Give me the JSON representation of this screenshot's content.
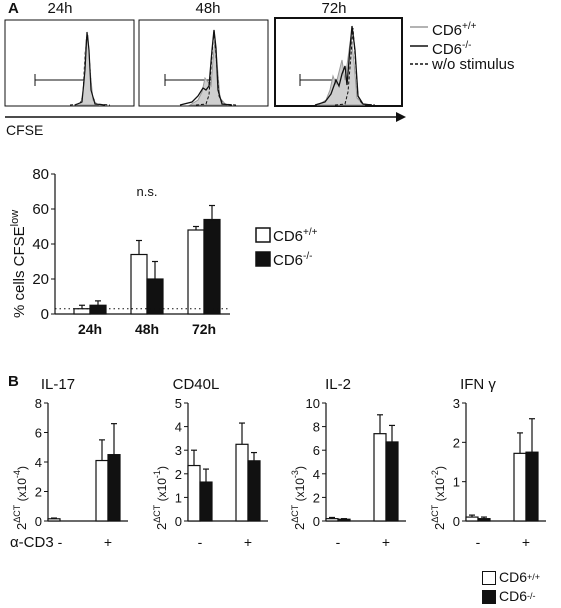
{
  "colors": {
    "ink": "#111111",
    "open_bar": "#ffffff",
    "filled_bar": "#111111",
    "histogram_fill": "#cfcfcf",
    "histogram_wt": "#9a9a9a"
  },
  "panel_a": {
    "letter": "A",
    "timepoints": [
      "24h",
      "48h",
      "72h"
    ],
    "legend": [
      {
        "label": "CD6",
        "sup": "+/+",
        "style": "gray-solid"
      },
      {
        "label": "CD6",
        "sup": "-/-",
        "style": "black-solid"
      },
      {
        "label": "w/o stimulus",
        "sup": "",
        "style": "black-dashed"
      }
    ],
    "axis_label": "CFSE"
  },
  "panel_b": {
    "letter": "B"
  },
  "chart_data": [
    {
      "type": "bar",
      "ylabel": "% cells CFSE",
      "ylabel_sup": "low",
      "categories": [
        "24h",
        "48h",
        "72h"
      ],
      "ylim": [
        0,
        80
      ],
      "yticks": [
        0,
        20,
        40,
        60,
        80
      ],
      "series": [
        {
          "name": "CD6+/+",
          "values": [
            3,
            34,
            48
          ],
          "errors": [
            2,
            8,
            2
          ]
        },
        {
          "name": "CD6-/-",
          "values": [
            5,
            20,
            54
          ],
          "errors": [
            2.5,
            10,
            8
          ]
        }
      ],
      "annotation": "n.s.",
      "annotation_category": "48h",
      "baseline": 3,
      "legend": [
        {
          "label": "CD6",
          "sup": "+/+",
          "fill": "open"
        },
        {
          "label": "CD6",
          "sup": "-/-",
          "fill": "filled"
        }
      ]
    },
    {
      "type": "bar",
      "title": "IL-17",
      "ylabel": "2",
      "ylabel_sup": "ΔCT",
      "ylabel_unit": "(x10",
      "ylabel_exp": "-4",
      "ylabel_close": ")",
      "xlabel": "α-CD3",
      "categories": [
        "-",
        "+"
      ],
      "ylim": [
        0,
        8
      ],
      "yticks": [
        0,
        2,
        4,
        6,
        8
      ],
      "series": [
        {
          "name": "CD6+/+",
          "values": [
            0.15,
            4.1
          ],
          "errors": [
            0.05,
            1.4
          ]
        },
        {
          "name": "CD6-/-",
          "values": [
            0,
            4.5
          ],
          "errors": [
            0,
            2.1
          ]
        }
      ]
    },
    {
      "type": "bar",
      "title": "CD40L",
      "ylabel": "2",
      "ylabel_sup": "ΔCT",
      "ylabel_unit": "(x10",
      "ylabel_exp": "-1",
      "ylabel_close": ")",
      "xlabel": "",
      "categories": [
        "-",
        "+"
      ],
      "ylim": [
        0,
        5
      ],
      "yticks": [
        0,
        1,
        2,
        3,
        4,
        5
      ],
      "series": [
        {
          "name": "CD6+/+",
          "values": [
            2.35,
            3.25
          ],
          "errors": [
            0.65,
            0.9
          ]
        },
        {
          "name": "CD6-/-",
          "values": [
            1.65,
            2.55
          ],
          "errors": [
            0.55,
            0.35
          ]
        }
      ]
    },
    {
      "type": "bar",
      "title": "IL-2",
      "ylabel": "2",
      "ylabel_sup": "ΔCT",
      "ylabel_unit": "(x10",
      "ylabel_exp": "-3",
      "ylabel_close": ")",
      "xlabel": "",
      "categories": [
        "-",
        "+"
      ],
      "ylim": [
        0,
        10
      ],
      "yticks": [
        0,
        2,
        4,
        6,
        8,
        10
      ],
      "series": [
        {
          "name": "CD6+/+",
          "values": [
            0.2,
            7.4
          ],
          "errors": [
            0.1,
            1.6
          ]
        },
        {
          "name": "CD6-/-",
          "values": [
            0.15,
            6.7
          ],
          "errors": [
            0.05,
            1.4
          ]
        }
      ]
    },
    {
      "type": "bar",
      "title": "IFN γ",
      "ylabel": "2",
      "ylabel_sup": "ΔCT",
      "ylabel_unit": "(x10",
      "ylabel_exp": "-2",
      "ylabel_close": ")",
      "xlabel": "",
      "categories": [
        "-",
        "+"
      ],
      "ylim": [
        0,
        3
      ],
      "yticks": [
        0,
        1,
        2,
        3
      ],
      "series": [
        {
          "name": "CD6+/+",
          "values": [
            0.1,
            1.72
          ],
          "errors": [
            0.05,
            0.52
          ]
        },
        {
          "name": "CD6-/-",
          "values": [
            0.06,
            1.75
          ],
          "errors": [
            0.04,
            0.85
          ]
        }
      ]
    }
  ],
  "bottom_legend": [
    {
      "label": "CD6",
      "sup": "+/+",
      "fill": "open"
    },
    {
      "label": "CD6",
      "sup": "-/-",
      "fill": "filled"
    }
  ]
}
